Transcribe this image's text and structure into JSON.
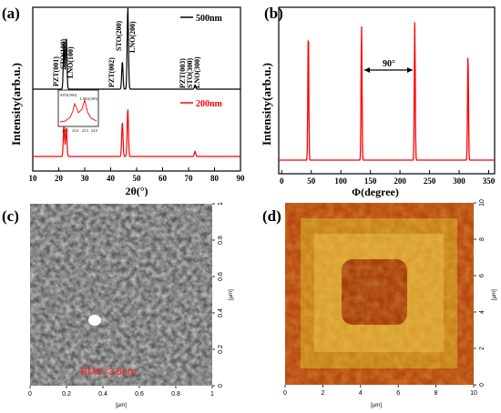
{
  "panels": {
    "a": {
      "letter": "(a)",
      "ylabel": "Intensity(arb.u.)",
      "xlabel": "2θ(°)",
      "legend": [
        "500nm",
        "200nm"
      ],
      "peak_labels": [
        "PZT(001)",
        "STO(100)",
        "LNO(100)",
        "PZT(002)",
        "STO(200)",
        "LNO(200)",
        "PZT(003)",
        "STO(300)",
        "LNO(300)"
      ],
      "inset": {
        "labels": [
          "STO(100)",
          "LNO(100)"
        ],
        "ticks": [
          "22.5",
          "23.0",
          "23.5",
          "24.0"
        ]
      }
    },
    "b": {
      "letter": "(b)",
      "ylabel": "Intensity(arb.u.)",
      "xlabel": "Φ(degree)",
      "annotation": "90°"
    },
    "c": {
      "letter": "(c)",
      "rms": "RMS=3.6nm",
      "x_ticks": [
        "0",
        "0.2",
        "0.4",
        "0.6",
        "0.8",
        "1"
      ],
      "y_ticks": [
        "0",
        "0.2",
        "0.4",
        "0.6",
        "0.8",
        "1"
      ],
      "unit": "[µm]"
    },
    "d": {
      "letter": "(d)",
      "x_ticks": [
        "0",
        "2",
        "4",
        "6",
        "8",
        "10"
      ],
      "y_ticks": [
        "0",
        "2",
        "4",
        "6",
        "8",
        "10"
      ],
      "unit": "[µm]"
    }
  },
  "chart_data": [
    {
      "type": "line",
      "title": "",
      "xlabel": "2θ(°)",
      "ylabel": "Intensity(arb.u.)",
      "xlim": [
        10,
        90
      ],
      "x_ticks": [
        10,
        20,
        30,
        40,
        50,
        60,
        70,
        80,
        90
      ],
      "series": [
        {
          "name": "500nm",
          "color": "#000000",
          "peaks": [
            {
              "x": 22.0,
              "h": 0.55
            },
            {
              "x": 22.9,
              "h": 0.6
            },
            {
              "x": 44.5,
              "h": 0.32
            },
            {
              "x": 46.6,
              "h": 0.95
            },
            {
              "x": 72.5,
              "h": 0.05
            }
          ]
        },
        {
          "name": "200nm",
          "color": "#ff0000",
          "peaks": [
            {
              "x": 22.0,
              "h": 0.36
            },
            {
              "x": 22.9,
              "h": 0.34
            },
            {
              "x": 44.5,
              "h": 0.4
            },
            {
              "x": 46.6,
              "h": 0.55
            },
            {
              "x": 72.5,
              "h": 0.06
            }
          ]
        }
      ]
    },
    {
      "type": "line",
      "title": "",
      "xlabel": "Φ(degree)",
      "ylabel": "Intensity(arb.u.)",
      "xlim": [
        -5,
        360
      ],
      "x_ticks": [
        0,
        50,
        100,
        150,
        200,
        250,
        300,
        350
      ],
      "series": [
        {
          "name": "",
          "color": "#ff0000",
          "peaks": [
            {
              "x": 45,
              "h": 0.88
            },
            {
              "x": 135,
              "h": 0.91
            },
            {
              "x": 225,
              "h": 0.92
            },
            {
              "x": 315,
              "h": 0.72
            }
          ]
        }
      ]
    }
  ],
  "colors": {
    "red": "#ff0000",
    "black": "#000000"
  }
}
